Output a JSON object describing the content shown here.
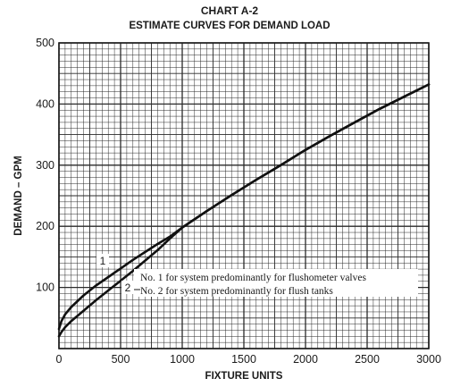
{
  "chart_data": {
    "type": "line",
    "title": "CHART A-2",
    "subtitle": "ESTIMATE CURVES FOR DEMAND LOAD",
    "xlabel": "FIXTURE UNITS",
    "ylabel": "DEMAND – GPM",
    "xlim": [
      0,
      3000
    ],
    "ylim": [
      0,
      500
    ],
    "x_ticks": [
      0,
      500,
      1000,
      1500,
      2000,
      2500,
      3000
    ],
    "x_tick_labels": [
      "0",
      "500",
      "1000",
      "1500",
      "2000",
      "2500",
      "3000"
    ],
    "y_ticks": [
      100,
      200,
      300,
      400,
      500
    ],
    "y_tick_labels": [
      "100",
      "200",
      "300",
      "400",
      "500"
    ],
    "grid": true,
    "series": [
      {
        "name": "1",
        "x": [
          0,
          20,
          50,
          100,
          200,
          300,
          400,
          500,
          600,
          700,
          800,
          900,
          1000,
          1200,
          1400,
          1600,
          1800,
          2000,
          2200,
          2400,
          2600,
          2800,
          3000
        ],
        "y": [
          32,
          45,
          56,
          68,
          87,
          103,
          117,
          131,
          145,
          158,
          171,
          183,
          198,
          225,
          251,
          276,
          300,
          325,
          348,
          370,
          392,
          412,
          432
        ]
      },
      {
        "name": "2",
        "x": [
          0,
          20,
          50,
          100,
          200,
          300,
          400,
          500,
          600,
          700,
          800,
          900,
          1000,
          1200,
          1400,
          1600,
          1800,
          2000,
          2200,
          2400,
          2600,
          2800,
          3000
        ],
        "y": [
          20,
          27,
          35,
          45,
          62,
          79,
          95,
          111,
          127,
          144,
          161,
          180,
          198,
          225,
          251,
          276,
          300,
          325,
          348,
          370,
          392,
          412,
          432
        ]
      }
    ],
    "annotations": [
      "No. 1 for system predominantly for flushometer valves",
      "No. 2 for system predominantly for flush tanks"
    ],
    "curve_labels": [
      "1",
      "2"
    ]
  }
}
